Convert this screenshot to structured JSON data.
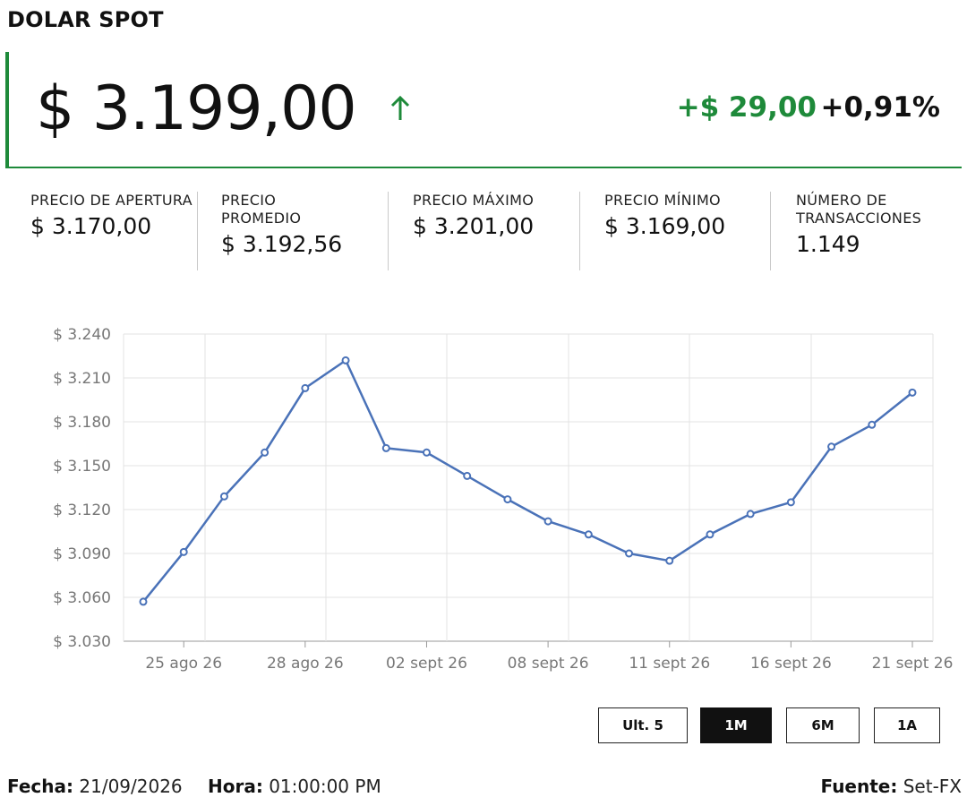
{
  "header": {
    "title": "DOLAR SPOT"
  },
  "quote": {
    "price": "$ 3.199,00",
    "change": "+$ 29,00",
    "change_pct": "+0,91%",
    "direction_icon": "arrow-up-icon",
    "up_color": "#1e8a3a"
  },
  "stats": [
    {
      "label": "PRECIO DE APERTURA",
      "value": "$ 3.170,00"
    },
    {
      "label": "PRECIO PROMEDIO",
      "value": "$ 3.192,56"
    },
    {
      "label": "PRECIO MÁXIMO",
      "value": "$ 3.201,00"
    },
    {
      "label": "PRECIO MÍNIMO",
      "value": "$ 3.169,00"
    },
    {
      "label": "NÚMERO DE TRANSACCIONES",
      "value": "1.149"
    }
  ],
  "chart_data": {
    "type": "line",
    "ylim": [
      3030,
      3240
    ],
    "y_ticks": [
      3030,
      3060,
      3090,
      3120,
      3150,
      3180,
      3210,
      3240
    ],
    "y_tick_labels": [
      "$ 3.030",
      "$ 3.060",
      "$ 3.090",
      "$ 3.120",
      "$ 3.150",
      "$ 3.180",
      "$ 3.210",
      "$ 3.240"
    ],
    "x_tick_labels": [
      "25 ago 26",
      "28 ago 26",
      "02 sept 26",
      "08 sept 26",
      "11 sept 26",
      "16 sept 26",
      "21 sept 26"
    ],
    "x_tick_indices": [
      1,
      4,
      7,
      10,
      13,
      16,
      19
    ],
    "grid": true,
    "line_color": "#4a72b8",
    "series": [
      {
        "values": [
          3057,
          3091,
          3129,
          3159,
          3203,
          3222,
          3162,
          3159,
          3143,
          3127,
          3112,
          3103,
          3090,
          3085,
          3103,
          3117,
          3125,
          3163,
          3178,
          3200
        ]
      }
    ]
  },
  "range_buttons": [
    {
      "label": "Ult. 5",
      "active": false
    },
    {
      "label": "1M",
      "active": true
    },
    {
      "label": "6M",
      "active": false
    },
    {
      "label": "1A",
      "active": false
    }
  ],
  "footer": {
    "date_label": "Fecha:",
    "date_value": "21/09/2026",
    "time_label": "Hora:",
    "time_value": "01:00:00 PM",
    "source_label": "Fuente:",
    "source_value": "Set-FX"
  }
}
